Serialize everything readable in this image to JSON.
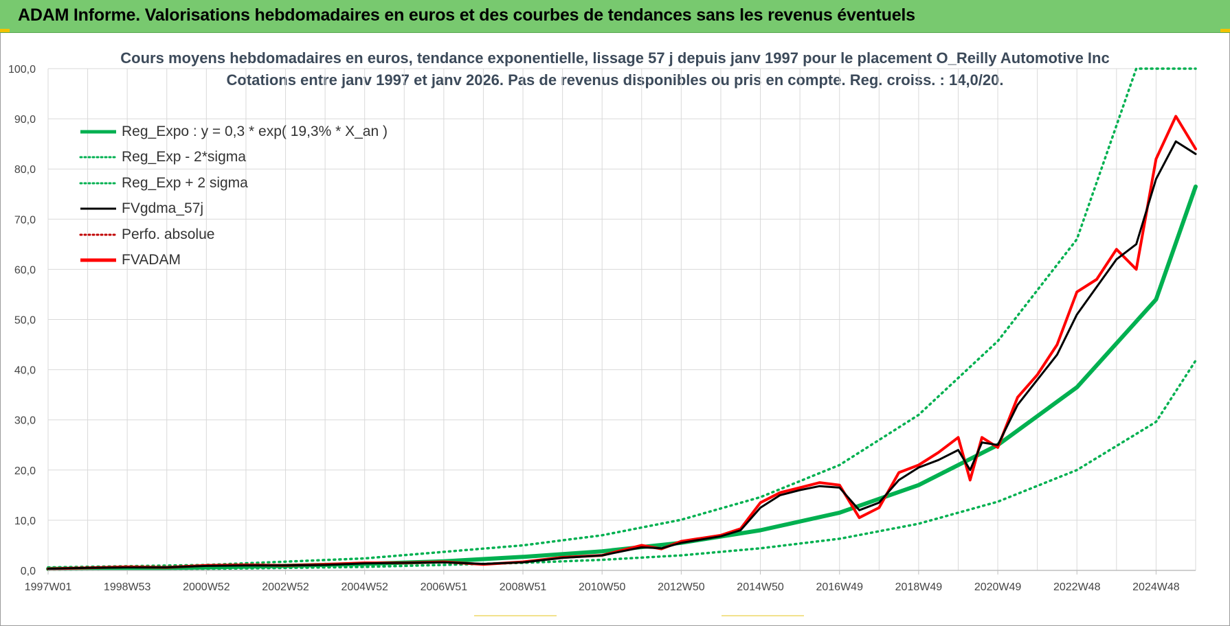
{
  "banner": {
    "title": "ADAM Informe. Valorisations hebdomadaires en euros et des courbes de tendances sans les revenus éventuels"
  },
  "colors": {
    "banner_bg": "#78c96f",
    "trend": "#00b050",
    "band": "#00b050",
    "gdma": "#000000",
    "perfo": "#c00000",
    "fvadam": "#ff0000",
    "grid": "#d9d9d9"
  },
  "chart_data": {
    "type": "line",
    "title": "Cours moyens hebdomadaires en euros, tendance exponentielle, lissage 57 j depuis janv 1997 pour le placement O_Reilly Automotive Inc",
    "subtitle": "Cotations entre janv 1997 et janv 2026. Pas de revenus disponibles ou pris en compte. Reg. croiss. : 14,0/20.",
    "xlabel": "",
    "ylabel": "",
    "xlim": [
      1997.0,
      2026.0
    ],
    "ylim": [
      0,
      100
    ],
    "y_ticks": [
      "0,0",
      "10,0",
      "20,0",
      "30,0",
      "40,0",
      "50,0",
      "60,0",
      "70,0",
      "80,0",
      "90,0",
      "100,0"
    ],
    "x_tick_labels": [
      "1997W01",
      "1998W53",
      "2000W52",
      "2002W52",
      "2004W52",
      "2006W51",
      "2008W51",
      "2010W50",
      "2012W50",
      "2014W50",
      "2016W49",
      "2018W49",
      "2020W49",
      "2022W48",
      "2024W48"
    ],
    "x_tick_years": [
      1997.0,
      1999.0,
      2001.0,
      2003.0,
      2005.0,
      2007.0,
      2009.0,
      2011.0,
      2013.0,
      2015.0,
      2017.0,
      2019.0,
      2021.0,
      2023.0,
      2025.0
    ],
    "grid": true,
    "legend_position": "top-left",
    "legend": [
      {
        "label": "Reg_Expo : y = 0,3 * exp( 19,3% *  X_an )",
        "color": "#00b050",
        "style": "solid-thick"
      },
      {
        "label": "Reg_Exp - 2*sigma",
        "color": "#00b050",
        "style": "dotted"
      },
      {
        "label": "Reg_Exp + 2 sigma",
        "color": "#00b050",
        "style": "dotted"
      },
      {
        "label": "FVgdma_57j",
        "color": "#000000",
        "style": "solid"
      },
      {
        "label": "Perfo. absolue",
        "color": "#c00000",
        "style": "dotted"
      },
      {
        "label": "FVADAM",
        "color": "#ff0000",
        "style": "solid-thick"
      }
    ],
    "series": [
      {
        "name": "Reg_Expo : y = 0,3 * exp( 19,3% *  X_an )",
        "x": [
          1997.0,
          1999.0,
          2001.0,
          2003.0,
          2005.0,
          2007.0,
          2009.0,
          2011.0,
          2013.0,
          2015.0,
          2017.0,
          2019.0,
          2021.0,
          2023.0,
          2025.0,
          2026.0
        ],
        "values": [
          0.3,
          0.4,
          0.6,
          0.9,
          1.3,
          1.8,
          2.7,
          3.8,
          5.5,
          8.0,
          11.5,
          17.0,
          25.0,
          36.5,
          54.0,
          76.5
        ]
      },
      {
        "name": "Reg_Exp - 2*sigma",
        "x": [
          1997.0,
          2001.0,
          2005.0,
          2009.0,
          2011.0,
          2013.0,
          2015.0,
          2017.0,
          2019.0,
          2021.0,
          2023.0,
          2025.0,
          2026.0
        ],
        "values": [
          0.1,
          0.3,
          0.7,
          1.5,
          2.1,
          3.0,
          4.4,
          6.3,
          9.3,
          13.7,
          20.0,
          29.6,
          41.8
        ]
      },
      {
        "name": "Reg_Exp + 2 sigma",
        "x": [
          1997.0,
          2001.0,
          2005.0,
          2009.0,
          2011.0,
          2013.0,
          2015.0,
          2017.0,
          2019.0,
          2021.0,
          2023.0,
          2024.5,
          2026.0
        ],
        "values": [
          0.6,
          1.1,
          2.4,
          5.0,
          7.0,
          10.1,
          14.6,
          21.0,
          31.0,
          45.7,
          66.0,
          100.0,
          100.0
        ]
      },
      {
        "name": "FVgdma_57j",
        "x": [
          1997.0,
          1998.0,
          1999.0,
          2000.0,
          2001.0,
          2002.0,
          2003.0,
          2004.0,
          2005.0,
          2006.0,
          2007.0,
          2008.0,
          2009.0,
          2010.0,
          2011.0,
          2012.0,
          2012.5,
          2013.0,
          2014.0,
          2014.5,
          2015.0,
          2015.5,
          2016.0,
          2016.5,
          2017.0,
          2017.5,
          2018.0,
          2018.5,
          2019.0,
          2019.5,
          2020.0,
          2020.3,
          2020.6,
          2021.0,
          2021.5,
          2022.0,
          2022.5,
          2023.0,
          2023.5,
          2024.0,
          2024.5,
          2025.0,
          2025.5,
          2026.0
        ],
        "values": [
          0.3,
          0.5,
          0.6,
          0.6,
          0.9,
          1.0,
          1.0,
          1.1,
          1.4,
          1.5,
          1.6,
          1.3,
          1.6,
          2.5,
          3.0,
          4.6,
          4.4,
          5.5,
          6.8,
          8.0,
          12.5,
          15.0,
          16.0,
          16.8,
          16.5,
          12.0,
          13.5,
          18.0,
          20.5,
          22.0,
          24.0,
          20.0,
          25.5,
          25.0,
          33.0,
          38.0,
          43.0,
          51.0,
          56.5,
          62.0,
          65.0,
          78.0,
          85.5,
          83.0
        ]
      },
      {
        "name": "FVADAM",
        "x": [
          1997.0,
          1998.0,
          1999.0,
          2000.0,
          2001.0,
          2002.0,
          2003.0,
          2004.0,
          2005.0,
          2006.0,
          2007.0,
          2008.0,
          2009.0,
          2010.0,
          2011.0,
          2012.0,
          2012.5,
          2013.0,
          2014.0,
          2014.5,
          2015.0,
          2015.5,
          2016.0,
          2016.5,
          2017.0,
          2017.5,
          2018.0,
          2018.5,
          2019.0,
          2019.5,
          2020.0,
          2020.3,
          2020.6,
          2021.0,
          2021.5,
          2022.0,
          2022.5,
          2023.0,
          2023.5,
          2024.0,
          2024.5,
          2025.0,
          2025.5,
          2026.0
        ],
        "values": [
          0.3,
          0.5,
          0.7,
          0.6,
          1.0,
          1.1,
          1.0,
          1.2,
          1.5,
          1.5,
          1.7,
          1.2,
          1.7,
          2.6,
          3.0,
          5.0,
          4.3,
          5.8,
          7.0,
          8.3,
          13.5,
          15.5,
          16.5,
          17.5,
          17.0,
          10.5,
          12.5,
          19.5,
          21.0,
          23.5,
          26.5,
          18.0,
          26.5,
          24.5,
          34.5,
          39.0,
          45.0,
          55.5,
          58.0,
          64.0,
          60.0,
          82.0,
          90.5,
          84.0
        ]
      }
    ]
  }
}
